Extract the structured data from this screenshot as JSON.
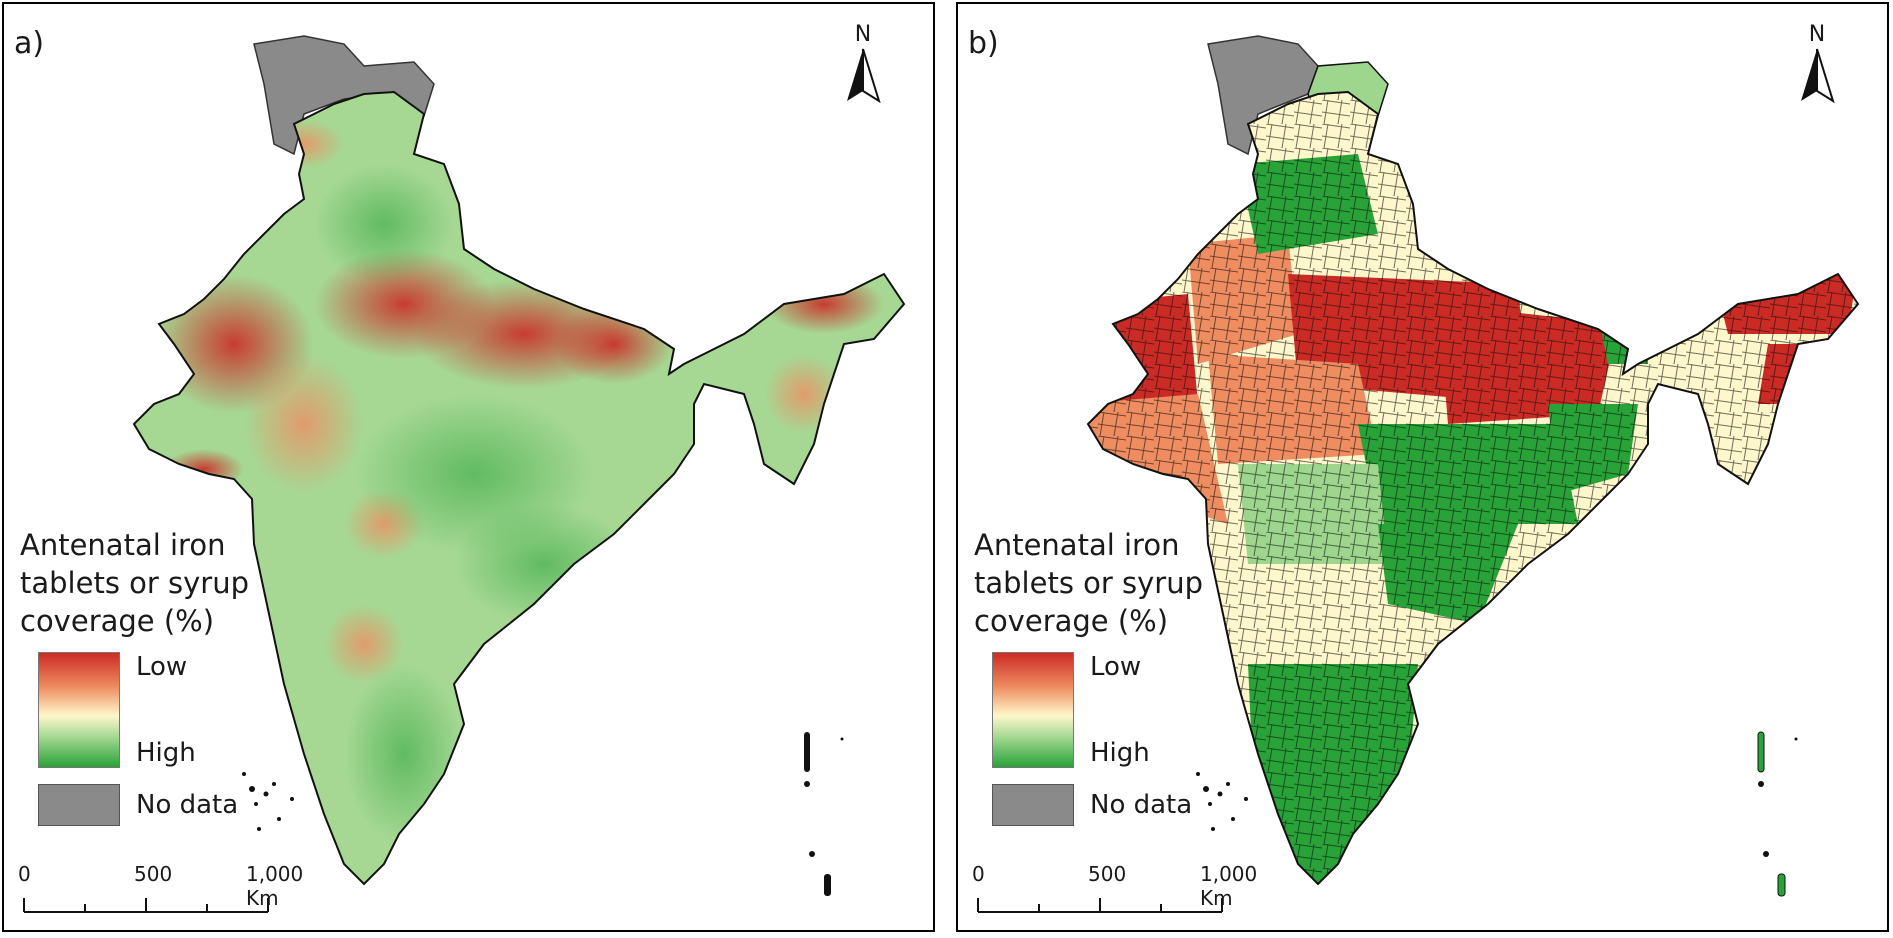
{
  "panels": [
    {
      "label": "a)",
      "map_type": "continuous surface",
      "north_label": "N",
      "legend": {
        "title_lines": [
          "Antenatal iron",
          "tablets or syrup",
          "coverage (%)"
        ],
        "low_label": "Low",
        "high_label": "High",
        "nodata_label": "No data"
      },
      "scale": {
        "ticks": [
          "0",
          "500",
          "1,000 Km"
        ]
      }
    },
    {
      "label": "b)",
      "map_type": "district choropleth",
      "north_label": "N",
      "legend": {
        "title_lines": [
          "Antenatal iron",
          "tablets or syrup",
          "coverage (%)"
        ],
        "low_label": "Low",
        "high_label": "High",
        "nodata_label": "No data"
      },
      "scale": {
        "ticks": [
          "0",
          "500",
          "1,000 Km"
        ]
      }
    }
  ],
  "colors": {
    "low": "#cc2b25",
    "mid_low": "#ef8d61",
    "mid": "#fff7cc",
    "mid_high": "#9ed68e",
    "high": "#28a338",
    "no_data": "#8a8a8a"
  }
}
